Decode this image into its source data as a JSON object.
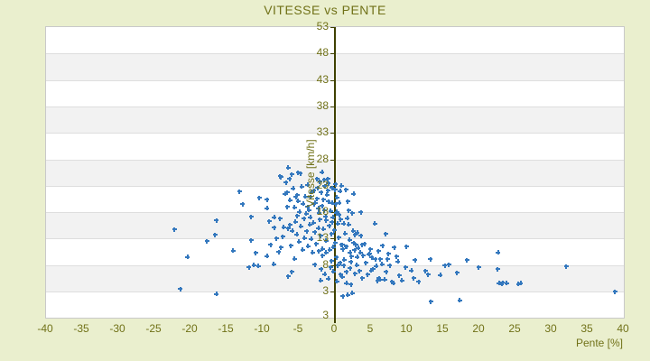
{
  "colors": {
    "background": "#EAEFCE",
    "plot_background": "#FFFFFF",
    "band_gray": "#F2F2F2",
    "grid_line": "#DEDEDE",
    "plot_border": "#C9C9C9",
    "axis_line": "#3F4102",
    "text": "#717219",
    "point": "#3478BE"
  },
  "chart_data": {
    "type": "scatter",
    "title": "VITESSE vs PENTE",
    "xlabel": "Pente [%]",
    "ylabel": "Vitesse [km/h]",
    "xlim": [
      -40,
      40
    ],
    "ylim": [
      3,
      53
    ],
    "x_ticks": [
      -40,
      -35,
      -30,
      -25,
      -20,
      -15,
      -10,
      -5,
      0,
      5,
      10,
      15,
      20,
      25,
      30,
      35,
      40
    ],
    "y_ticks": [
      53,
      48,
      43,
      38,
      33,
      28,
      23,
      18,
      13,
      8,
      3
    ],
    "y_axis_end_label": "3",
    "legend": "none",
    "grid": "horizontal-bands-alternating",
    "marker": "plus",
    "points": [
      [
        -22.2,
        14.7
      ],
      [
        -21.4,
        3.5
      ],
      [
        -20.4,
        9.5
      ],
      [
        -17.7,
        12.5
      ],
      [
        -16.6,
        13.7
      ],
      [
        -16.4,
        16.4
      ],
      [
        -16.4,
        2.5
      ],
      [
        -14.1,
        10.7
      ],
      [
        -13.2,
        21.9
      ],
      [
        -12.8,
        19.5
      ],
      [
        -11.9,
        7.6
      ],
      [
        -11.6,
        17.1
      ],
      [
        -11.6,
        12.7
      ],
      [
        -11.2,
        8.0
      ],
      [
        -11.0,
        10.3
      ],
      [
        -10.6,
        7.8
      ],
      [
        -10.5,
        20.7
      ],
      [
        -9.4,
        20.4
      ],
      [
        -9.4,
        18.7
      ],
      [
        -9.4,
        9.7
      ],
      [
        -9.1,
        16.3
      ],
      [
        -8.9,
        11.8
      ],
      [
        -8.5,
        8.2
      ],
      [
        -8.4,
        17.0
      ],
      [
        -8.4,
        15.1
      ],
      [
        -8.1,
        13.0
      ],
      [
        -7.8,
        10.5
      ],
      [
        -7.6,
        24.8
      ],
      [
        -7.6,
        16.8
      ],
      [
        -7.5,
        24.6
      ],
      [
        -7.5,
        11.3
      ],
      [
        -7.2,
        13.4
      ],
      [
        -7.1,
        15.2
      ],
      [
        -6.9,
        21.5
      ],
      [
        -6.8,
        23.6
      ],
      [
        -6.6,
        21.7
      ],
      [
        -6.6,
        19.0
      ],
      [
        -6.5,
        26.4
      ],
      [
        -6.5,
        14.9
      ],
      [
        -6.5,
        5.9
      ],
      [
        -6.3,
        24.3
      ],
      [
        -6.2,
        20.3
      ],
      [
        -6.2,
        15.6
      ],
      [
        -6.1,
        11.7
      ],
      [
        -6.0,
        25.1
      ],
      [
        -6.0,
        6.7
      ],
      [
        -5.9,
        14.5
      ],
      [
        -5.8,
        22.5
      ],
      [
        -5.6,
        18.9
      ],
      [
        -5.6,
        9.2
      ],
      [
        -5.5,
        16.2
      ],
      [
        -5.4,
        20.9
      ],
      [
        -5.3,
        13.8
      ],
      [
        -5.2,
        21.2
      ],
      [
        -5.2,
        17.3
      ],
      [
        -5.1,
        25.5
      ],
      [
        -5.1,
        20.1
      ],
      [
        -5.0,
        12.4
      ],
      [
        -4.9,
        18.1
      ],
      [
        -4.8,
        25.3
      ],
      [
        -4.7,
        15.3
      ],
      [
        -4.6,
        22.8
      ],
      [
        -4.5,
        10.9
      ],
      [
        -4.4,
        19.6
      ],
      [
        -4.3,
        16.8
      ],
      [
        -4.2,
        13.1
      ],
      [
        -4.1,
        21.0
      ],
      [
        -4.0,
        17.7
      ],
      [
        -3.9,
        14.4
      ],
      [
        -3.8,
        23.2
      ],
      [
        -3.8,
        19.0
      ],
      [
        -3.7,
        11.6
      ],
      [
        -3.6,
        18.4
      ],
      [
        -3.5,
        15.7
      ],
      [
        -3.4,
        20.9
      ],
      [
        -3.4,
        17.0
      ],
      [
        -3.3,
        12.9
      ],
      [
        -3.2,
        21.8
      ],
      [
        -3.1,
        10.4
      ],
      [
        -3.0,
        16.0
      ],
      [
        -2.9,
        22.1
      ],
      [
        -2.9,
        19.5
      ],
      [
        -2.8,
        14.2
      ],
      [
        -2.8,
        8.1
      ],
      [
        -2.7,
        19.8
      ],
      [
        -2.6,
        12.0
      ],
      [
        -2.5,
        24.3
      ],
      [
        -2.5,
        20.5
      ],
      [
        -2.4,
        22.6
      ],
      [
        -2.3,
        18.7
      ],
      [
        -2.3,
        15.0
      ],
      [
        -2.2,
        17.9
      ],
      [
        -2.2,
        10.6
      ],
      [
        -2.1,
        23.8
      ],
      [
        -2.1,
        16.6
      ],
      [
        -2.0,
        13.5
      ],
      [
        -2.0,
        5.1
      ],
      [
        -1.9,
        21.7
      ],
      [
        -1.9,
        7.2
      ],
      [
        -1.8,
        25.6
      ],
      [
        -1.8,
        19.2
      ],
      [
        -1.7,
        11.1
      ],
      [
        -1.7,
        9.8
      ],
      [
        -1.6,
        20.4
      ],
      [
        -1.6,
        14.8
      ],
      [
        -1.5,
        24.1
      ],
      [
        -1.5,
        18.3
      ],
      [
        -1.4,
        22.9
      ],
      [
        -1.4,
        6.3
      ],
      [
        -1.3,
        17.2
      ],
      [
        -1.2,
        16.4
      ],
      [
        -1.2,
        12.6
      ],
      [
        -1.2,
        10.4
      ],
      [
        -1.1,
        21.3
      ],
      [
        -1.0,
        24.3
      ],
      [
        -1.0,
        22.1
      ],
      [
        -0.9,
        23.4
      ],
      [
        -0.9,
        20.0
      ],
      [
        -0.9,
        5.4
      ],
      [
        -0.8,
        15.4
      ],
      [
        -0.7,
        10.9
      ],
      [
        -0.6,
        18.2
      ],
      [
        -0.6,
        7.6
      ],
      [
        -0.5,
        13.9
      ],
      [
        -0.5,
        8.8
      ],
      [
        -0.4,
        22.6
      ],
      [
        -0.4,
        19.8
      ],
      [
        -0.4,
        16.1
      ],
      [
        -0.3,
        17.0
      ],
      [
        -0.2,
        11.4
      ],
      [
        -0.2,
        6.8
      ],
      [
        -0.1,
        14.6
      ],
      [
        0.0,
        22.2
      ],
      [
        0.0,
        12.2
      ],
      [
        0.1,
        23.3
      ],
      [
        0.1,
        19.5
      ],
      [
        0.2,
        17.8
      ],
      [
        0.2,
        9.4
      ],
      [
        0.3,
        20.8
      ],
      [
        0.3,
        18.1
      ],
      [
        0.3,
        4.9
      ],
      [
        0.4,
        15.8
      ],
      [
        0.4,
        7.9
      ],
      [
        0.5,
        13.2
      ],
      [
        0.6,
        19.8
      ],
      [
        0.6,
        17.5
      ],
      [
        0.7,
        22.0
      ],
      [
        0.7,
        8.4
      ],
      [
        0.8,
        16.6
      ],
      [
        0.8,
        6.2
      ],
      [
        0.9,
        23.0
      ],
      [
        0.9,
        11.8
      ],
      [
        1.0,
        11.8
      ],
      [
        1.0,
        5.8
      ],
      [
        1.1,
        11.0
      ],
      [
        1.1,
        2.1
      ],
      [
        1.2,
        15.8
      ],
      [
        1.2,
        7.9
      ],
      [
        1.3,
        9.0
      ],
      [
        1.4,
        14.0
      ],
      [
        1.5,
        22.2
      ],
      [
        1.5,
        11.5
      ],
      [
        1.6,
        11.5
      ],
      [
        1.6,
        6.7
      ],
      [
        1.6,
        4.6
      ],
      [
        1.7,
        16.9
      ],
      [
        1.8,
        20.0
      ],
      [
        1.8,
        2.4
      ],
      [
        1.9,
        18.3
      ],
      [
        1.9,
        15.7
      ],
      [
        2.0,
        12.8
      ],
      [
        2.1,
        10.4
      ],
      [
        2.1,
        7.4
      ],
      [
        2.2,
        8.6
      ],
      [
        2.2,
        4.3
      ],
      [
        2.3,
        9.6
      ],
      [
        2.4,
        17.8
      ],
      [
        2.4,
        2.7
      ],
      [
        2.5,
        14.5
      ],
      [
        2.6,
        21.5
      ],
      [
        2.6,
        12.2
      ],
      [
        2.7,
        10.8
      ],
      [
        2.8,
        13.7
      ],
      [
        2.8,
        6.4
      ],
      [
        2.9,
        11.8
      ],
      [
        3.0,
        8.0
      ],
      [
        3.1,
        14.1
      ],
      [
        3.1,
        9.5
      ],
      [
        3.2,
        11.2
      ],
      [
        3.4,
        6.9
      ],
      [
        3.5,
        10.4
      ],
      [
        3.6,
        18.0
      ],
      [
        3.6,
        13.5
      ],
      [
        3.8,
        11.8
      ],
      [
        3.8,
        5.5
      ],
      [
        3.9,
        9.8
      ],
      [
        4.1,
        12.0
      ],
      [
        4.3,
        8.4
      ],
      [
        4.5,
        6.2
      ],
      [
        4.7,
        10.0
      ],
      [
        4.8,
        10.1
      ],
      [
        4.9,
        11.0
      ],
      [
        5.0,
        7.0
      ],
      [
        5.1,
        9.4
      ],
      [
        5.3,
        7.2
      ],
      [
        5.5,
        15.8
      ],
      [
        5.6,
        9.1
      ],
      [
        5.7,
        7.8
      ],
      [
        5.9,
        5.0
      ],
      [
        6.0,
        10.6
      ],
      [
        6.1,
        5.5
      ],
      [
        6.3,
        9.1
      ],
      [
        6.3,
        5.3
      ],
      [
        6.5,
        8.2
      ],
      [
        6.6,
        11.7
      ],
      [
        6.9,
        5.3
      ],
      [
        7.0,
        13.9
      ],
      [
        7.1,
        6.7
      ],
      [
        7.3,
        9.1
      ],
      [
        7.4,
        10.1
      ],
      [
        7.6,
        7.9
      ],
      [
        7.9,
        4.8
      ],
      [
        8.1,
        4.6
      ],
      [
        8.2,
        11.3
      ],
      [
        8.5,
        9.6
      ],
      [
        8.7,
        8.7
      ],
      [
        8.9,
        6.0
      ],
      [
        9.3,
        5.1
      ],
      [
        9.8,
        7.6
      ],
      [
        9.9,
        11.5
      ],
      [
        10.6,
        7.0
      ],
      [
        10.9,
        5.5
      ],
      [
        11.1,
        8.9
      ],
      [
        11.6,
        4.8
      ],
      [
        12.5,
        6.9
      ],
      [
        12.9,
        6.2
      ],
      [
        13.2,
        9.1
      ],
      [
        13.3,
        1.1
      ],
      [
        14.6,
        6.1
      ],
      [
        15.2,
        7.9
      ],
      [
        15.8,
        8.1
      ],
      [
        16.9,
        6.5
      ],
      [
        17.3,
        1.3
      ],
      [
        18.3,
        8.9
      ],
      [
        19.9,
        7.6
      ],
      [
        22.5,
        7.2
      ],
      [
        22.6,
        10.4
      ],
      [
        22.7,
        4.6
      ],
      [
        23.1,
        4.4
      ],
      [
        23.2,
        4.7
      ],
      [
        23.8,
        4.6
      ],
      [
        25.4,
        4.4
      ],
      [
        25.7,
        4.6
      ],
      [
        32.0,
        7.7
      ],
      [
        38.8,
        3.0
      ]
    ]
  }
}
